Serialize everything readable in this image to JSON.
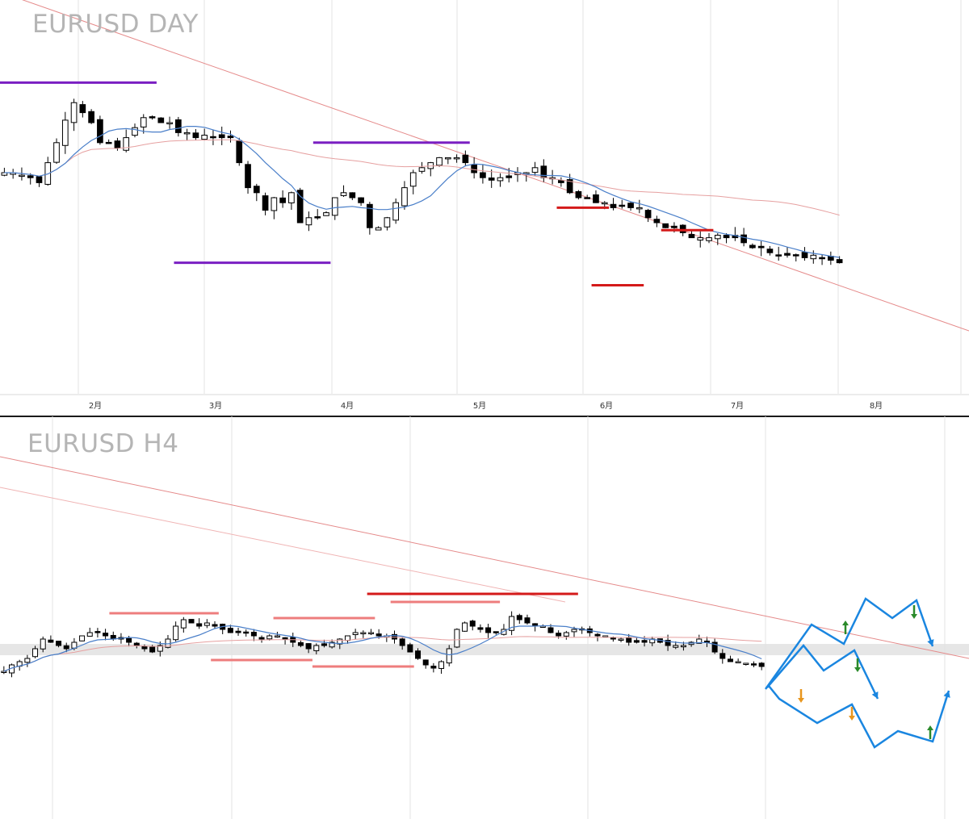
{
  "colors": {
    "candle_up": "#ffffff",
    "candle_down": "#000000",
    "wick": "#000000",
    "ma_fast": "#4a7fc9",
    "ma_slow": "#e6a0a0",
    "trendline": "#e58a8a",
    "purple_level": "#7a1fc2",
    "red_level": "#d41a1a",
    "pink_level": "#ee7d7d",
    "forecast": "#1a86e0",
    "arrow_up": "#2a8a2a",
    "arrow_down": "#e8961e",
    "arrow_down_green": "#2a8a2a",
    "zone": "#e6e6e6",
    "grid": "#e3e3e3"
  },
  "chart_data": [
    {
      "type": "candlestick",
      "title": "EURUSD DAY",
      "x_tick_labels": [
        "2月",
        "3月",
        "4月",
        "5月",
        "6月",
        "7月",
        "8月"
      ],
      "y_range": [
        0,
        100
      ],
      "grid": true,
      "notes": "Daily candles with 20-period MA (blue), long MA (pink), descending trendline and horizontal support/resistance levels; price values are relative (no price axis shown).",
      "closes": [
        60,
        60,
        59,
        58,
        56,
        64,
        72,
        81,
        88,
        84,
        80,
        72,
        72,
        70,
        74,
        78,
        82,
        82,
        80,
        80,
        76,
        76,
        74,
        75,
        74,
        74,
        74,
        64,
        54,
        52,
        45,
        50,
        48,
        52,
        40,
        42,
        42,
        44,
        50,
        52,
        50,
        48,
        38,
        38,
        42,
        48,
        54,
        60,
        62,
        64,
        66,
        66,
        66,
        64,
        60,
        58,
        57,
        58,
        58,
        60,
        60,
        62,
        58,
        58,
        56,
        52,
        50,
        50,
        48,
        48,
        46,
        47,
        46,
        46,
        42,
        40,
        38,
        38,
        36,
        34,
        34,
        34,
        35,
        34,
        34,
        32,
        30,
        30,
        28,
        27,
        27,
        27,
        26,
        27,
        26,
        25,
        24
      ],
      "levels": [
        {
          "name": "purple-top-left",
          "from": 0,
          "to": 17,
          "value": 96,
          "color": "purple_level"
        },
        {
          "name": "purple-mid",
          "from": 36,
          "to": 53,
          "value": 72,
          "color": "purple_level"
        },
        {
          "name": "purple-bottom",
          "from": 20,
          "to": 37,
          "value": 24,
          "color": "purple_level"
        },
        {
          "name": "red-right-1",
          "from": 64,
          "to": 69,
          "value": 46,
          "color": "red_level"
        },
        {
          "name": "red-right-2",
          "from": 76,
          "to": 81,
          "value": 37,
          "color": "red_level"
        },
        {
          "name": "red-right-support",
          "from": 68,
          "to": 73,
          "value": 15,
          "color": "red_level"
        }
      ]
    },
    {
      "type": "candlestick",
      "title": "EURUSD H4",
      "y_range": [
        0,
        100
      ],
      "grid": true,
      "notes": "4-hour candles with MA lines, descending trendline, support/resistance segments, a grey horizontal zone and blue zig-zag forecast scenarios with up/down arrows.",
      "closes": [
        32,
        36,
        38,
        40,
        46,
        52,
        50,
        48,
        46,
        50,
        54,
        56,
        56,
        54,
        52,
        52,
        50,
        48,
        46,
        44,
        48,
        52,
        60,
        64,
        62,
        60,
        62,
        60,
        58,
        56,
        56,
        56,
        54,
        52,
        54,
        54,
        52,
        50,
        48,
        46,
        48,
        48,
        50,
        52,
        54,
        56,
        56,
        56,
        54,
        54,
        52,
        48,
        44,
        40,
        36,
        34,
        38,
        46,
        58,
        62,
        60,
        58,
        56,
        56,
        58,
        66,
        64,
        62,
        60,
        60,
        56,
        54,
        56,
        58,
        58,
        56,
        54,
        54,
        52,
        52,
        50,
        50,
        50,
        52,
        50,
        48,
        48,
        48,
        50,
        52,
        50,
        44,
        40,
        38,
        38,
        37,
        36,
        35
      ],
      "levels": [
        {
          "name": "pink-res-left",
          "from": 14,
          "to": 27,
          "value": 68,
          "color": "pink_level"
        },
        {
          "name": "pink-res-mid",
          "from": 35,
          "to": 47,
          "value": 65,
          "color": "pink_level"
        },
        {
          "name": "red-res-top",
          "from": 47,
          "to": 73,
          "value": 80,
          "color": "red_level"
        },
        {
          "name": "pink-res-top",
          "from": 50,
          "to": 63,
          "value": 75,
          "color": "pink_level"
        },
        {
          "name": "pink-sup-left",
          "from": 27,
          "to": 39,
          "value": 39,
          "color": "pink_level"
        },
        {
          "name": "pink-sup-mid",
          "from": 40,
          "to": 52,
          "value": 35,
          "color": "pink_level"
        }
      ]
    }
  ]
}
